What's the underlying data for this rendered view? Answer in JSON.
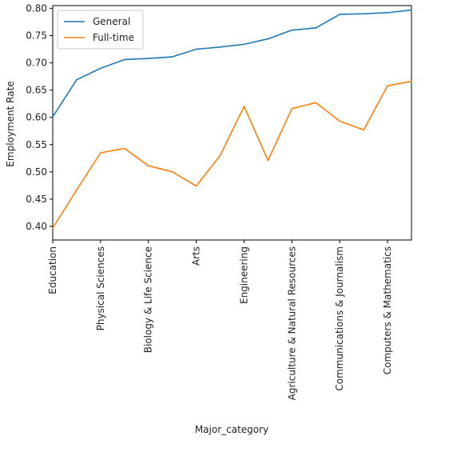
{
  "chart_data": {
    "type": "line",
    "xlabel": "Major_category",
    "ylabel": "Employment Rate",
    "ylim": [
      0.375,
      0.805
    ],
    "yticks": [
      0.4,
      0.45,
      0.5,
      0.55,
      0.6,
      0.65,
      0.7,
      0.75,
      0.8
    ],
    "ytick_labels": [
      "0.40",
      "0.45",
      "0.50",
      "0.55",
      "0.60",
      "0.65",
      "0.70",
      "0.75",
      "0.80"
    ],
    "xtick_positions": [
      0,
      2,
      4,
      6,
      8,
      10,
      12,
      14
    ],
    "xtick_labels": [
      "Education",
      "Physical Sciences",
      "Biology & Life Science",
      "Arts",
      "Engineering",
      "Agriculture & Natural Resources",
      "Communications & Journalism",
      "Computers & Mathematics"
    ],
    "x": [
      0,
      1,
      2,
      3,
      4,
      5,
      6,
      7,
      8,
      9,
      10,
      11,
      12,
      13,
      14,
      15
    ],
    "series": [
      {
        "name": "General",
        "color": "#1f77b4",
        "values": [
          0.601,
          0.669,
          0.69,
          0.706,
          0.708,
          0.711,
          0.725,
          0.729,
          0.734,
          0.744,
          0.76,
          0.764,
          0.789,
          0.79,
          0.792,
          0.797
        ]
      },
      {
        "name": "Full-time",
        "color": "#ff7f0e",
        "values": [
          0.397,
          0.467,
          0.535,
          0.543,
          0.511,
          0.5,
          0.474,
          0.53,
          0.62,
          0.521,
          0.616,
          0.627,
          0.593,
          0.577,
          0.658,
          0.666
        ]
      }
    ],
    "grid": false,
    "legend_position": "top-left"
  }
}
